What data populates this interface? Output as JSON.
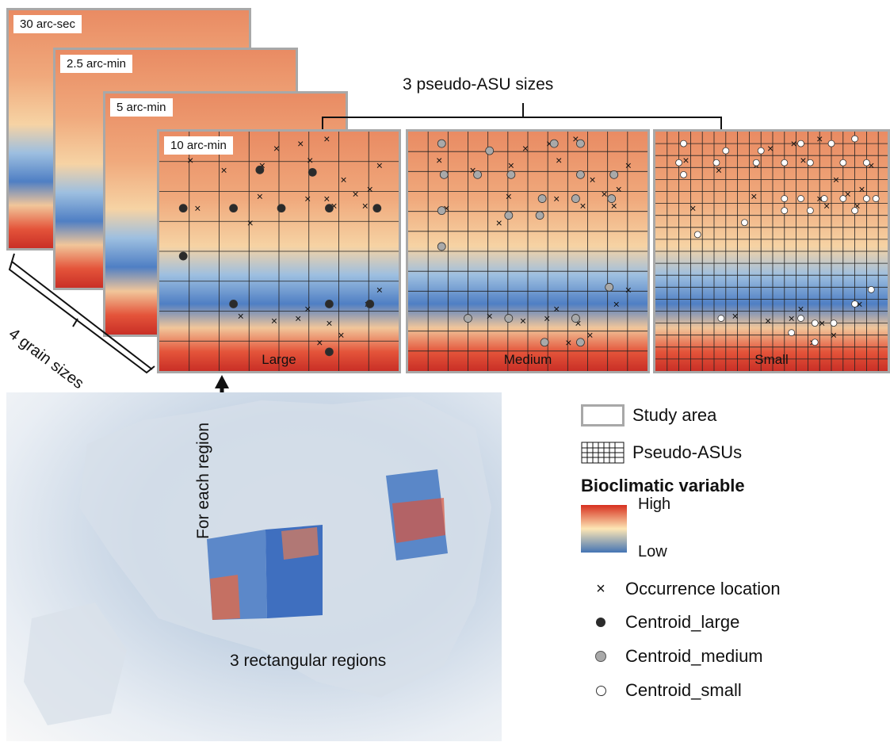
{
  "grain_layers": [
    {
      "label": "30 arc-sec"
    },
    {
      "label": "2.5 arc-min"
    },
    {
      "label": "5 arc-min"
    },
    {
      "label": "10 arc-min"
    }
  ],
  "grain_caption": "4 grain sizes",
  "asu_caption": "3 pseudo-ASU sizes",
  "panels": [
    {
      "label": "Large",
      "grid": 8,
      "centroid": "large"
    },
    {
      "label": "Medium",
      "grid": 12,
      "centroid": "medium"
    },
    {
      "label": "Small",
      "grid": 20,
      "centroid": "small"
    }
  ],
  "arrow_label": "For each region",
  "regions_caption": "3 rectangular regions",
  "legend": {
    "study_area": "Study area",
    "pseudo_asus": "Pseudo-ASUs",
    "bioclim_title": "Bioclimatic variable",
    "high": "High",
    "low": "Low",
    "occurrence": "Occurrence location",
    "centroid_large": "Centroid_large",
    "centroid_medium": "Centroid_medium",
    "centroid_small": "Centroid_small"
  },
  "colors": {
    "high": "#d7301f",
    "mid": "#fde6b4",
    "low": "#4575b4",
    "centroid_large": "#2b2b2b",
    "centroid_medium": "#a9a9a9",
    "centroid_small": "#ffffff",
    "frame": "#a8a8a8"
  }
}
